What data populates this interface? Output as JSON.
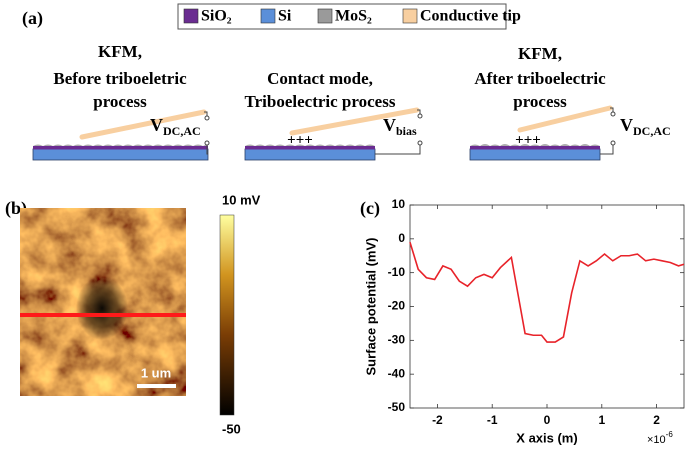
{
  "panel_a": {
    "label": "(a)",
    "legend": [
      {
        "name": "SiO₂",
        "color": "#6a2c91"
      },
      {
        "name": "Si",
        "color": "#5b8fd9"
      },
      {
        "name": "MoS₂",
        "color": "#9a9a9a"
      },
      {
        "name": "Conductive tip",
        "color": "#f8cfa0"
      }
    ],
    "diagrams": [
      {
        "title": [
          "KFM,",
          "Before triboeletric",
          "process"
        ],
        "source": {
          "main": "V",
          "sub": "DC,AC"
        }
      },
      {
        "title": [
          "Contact mode,",
          "Triboelectric process"
        ],
        "charges": "+++",
        "source": {
          "main": "V",
          "sub": "bias"
        }
      },
      {
        "title": [
          "KFM,",
          "After triboelectric",
          "process"
        ],
        "charges": "+++",
        "source": {
          "main": "V",
          "sub": "DC,AC"
        }
      }
    ]
  },
  "panel_b": {
    "label": "(b)",
    "scale_bar": "1 um",
    "colorbar_max": "10 mV",
    "colorbar_min": "-50"
  },
  "chart_data": {
    "type": "line",
    "label": "(c)",
    "xlabel": "X axis (m)",
    "ylabel": "Surface potential (mV)",
    "x_exponent": {
      "base": "×10",
      "exp": "-6"
    },
    "x": [
      -2.5,
      -2.35,
      -2.2,
      -2.05,
      -1.9,
      -1.75,
      -1.6,
      -1.45,
      -1.3,
      -1.15,
      -1.0,
      -0.85,
      -0.65,
      -0.5,
      -0.4,
      -0.25,
      -0.1,
      0.0,
      0.15,
      0.3,
      0.45,
      0.6,
      0.75,
      0.9,
      1.05,
      1.2,
      1.35,
      1.5,
      1.65,
      1.8,
      1.95,
      2.1,
      2.25,
      2.4,
      2.5
    ],
    "values": [
      -1,
      -9,
      -11.5,
      -12,
      -8,
      -9,
      -12.5,
      -14,
      -11.5,
      -10.5,
      -11.5,
      -8.5,
      -5.5,
      -19,
      -28,
      -28.5,
      -28.5,
      -30.5,
      -30.5,
      -29,
      -16,
      -6.5,
      -8,
      -6.5,
      -4.5,
      -6.5,
      -5,
      -5,
      -4.5,
      -6.5,
      -6,
      -6.5,
      -7,
      -8,
      -7.5
    ],
    "color": "#e8232a",
    "xlim": [
      -2.5,
      2.5
    ],
    "xticks": [
      -2,
      -1,
      0,
      1,
      2
    ],
    "ylim": [
      -50,
      10
    ],
    "yticks": [
      -50,
      -40,
      -30,
      -20,
      -10,
      0,
      10
    ]
  }
}
